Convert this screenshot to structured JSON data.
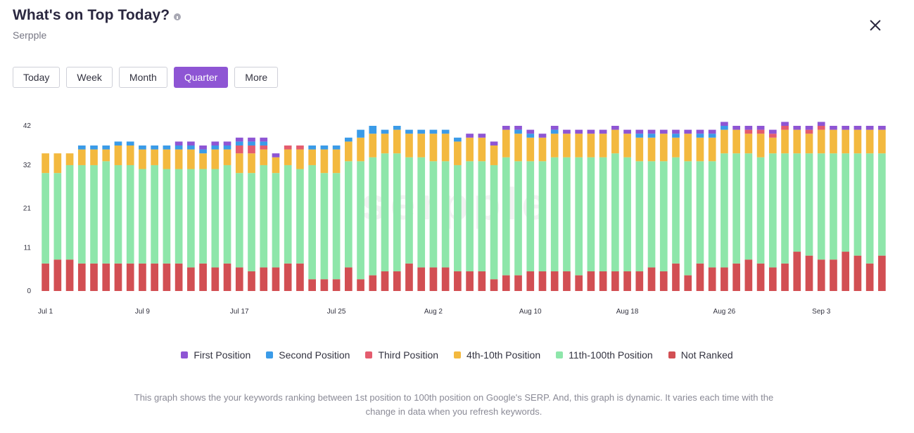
{
  "header": {
    "title": "What's on Top Today?",
    "subtitle": "Serpple"
  },
  "range_tabs": [
    "Today",
    "Week",
    "Month",
    "Quarter",
    "More"
  ],
  "active_tab": "Quarter",
  "watermark": "serpple",
  "colors": {
    "first": "#8e55d4",
    "second": "#3a9be8",
    "third": "#e45c6e",
    "top10": "#f3b93f",
    "top100": "#8ee6aa",
    "not_ranked": "#d24f53"
  },
  "chart_data": {
    "type": "bar",
    "stacked": true,
    "title": "",
    "xlabel": "",
    "ylabel": "",
    "ylim": [
      0,
      42
    ],
    "y_ticks": [
      0,
      11,
      21,
      32,
      42
    ],
    "x_tick_labels": [
      {
        "index": 0,
        "label": "Jul 1"
      },
      {
        "index": 8,
        "label": "Jul 9"
      },
      {
        "index": 16,
        "label": "Jul 17"
      },
      {
        "index": 24,
        "label": "Jul 25"
      },
      {
        "index": 32,
        "label": "Aug 2"
      },
      {
        "index": 40,
        "label": "Aug 10"
      },
      {
        "index": 48,
        "label": "Aug 18"
      },
      {
        "index": 56,
        "label": "Aug 26"
      },
      {
        "index": 64,
        "label": "Sep 3"
      }
    ],
    "categories_start": "Jul 1",
    "series": [
      {
        "name": "Not Ranked",
        "key": "not_ranked",
        "values": [
          7,
          8,
          8,
          7,
          7,
          7,
          7,
          7,
          7,
          7,
          7,
          7,
          6,
          7,
          6,
          7,
          6,
          5,
          6,
          6,
          7,
          7,
          3,
          3,
          3,
          6,
          3,
          4,
          5,
          5,
          7,
          6,
          6,
          6,
          5,
          5,
          5,
          3,
          4,
          4,
          5,
          5,
          5,
          5,
          4,
          5,
          5,
          5,
          5,
          5,
          6,
          5,
          7,
          4,
          7,
          6,
          6,
          7,
          8,
          7,
          6,
          7,
          10,
          9,
          8,
          8,
          10,
          9,
          7,
          9
        ]
      },
      {
        "name": "11th-100th Position",
        "key": "top100",
        "values": [
          23,
          22,
          24,
          25,
          25,
          26,
          25,
          25,
          24,
          25,
          24,
          24,
          25,
          24,
          25,
          25,
          24,
          25,
          26,
          24,
          25,
          24,
          29,
          27,
          27,
          27,
          30,
          30,
          30,
          30,
          27,
          28,
          27,
          27,
          27,
          28,
          28,
          29,
          30,
          29,
          28,
          28,
          29,
          29,
          30,
          29,
          29,
          30,
          29,
          28,
          27,
          28,
          27,
          29,
          26,
          27,
          29,
          28,
          27,
          27,
          29,
          28,
          25,
          26,
          27,
          27,
          25,
          26,
          28,
          26
        ]
      },
      {
        "name": "4th-10th Position",
        "key": "top10",
        "values": [
          5,
          5,
          3,
          4,
          4,
          3,
          5,
          5,
          5,
          4,
          5,
          5,
          5,
          4,
          5,
          4,
          5,
          5,
          4,
          4,
          4,
          5,
          4,
          6,
          6,
          5,
          6,
          6,
          5,
          6,
          6,
          6,
          7,
          7,
          6,
          6,
          6,
          5,
          7,
          7,
          6,
          6,
          6,
          6,
          6,
          6,
          6,
          6,
          6,
          6,
          6,
          7,
          5,
          7,
          6,
          6,
          6,
          6,
          5,
          6,
          4,
          6,
          6,
          5,
          6,
          6,
          6,
          6,
          6,
          6
        ]
      },
      {
        "name": "Third Position",
        "key": "third",
        "values": [
          0,
          0,
          0,
          0,
          0,
          0,
          0,
          0,
          0,
          0,
          0,
          0,
          0,
          0,
          0,
          0,
          2,
          2,
          1,
          0,
          1,
          1,
          0,
          0,
          0,
          0,
          0,
          0,
          0,
          0,
          0,
          0,
          0,
          0,
          0,
          0,
          0,
          0,
          0,
          0,
          0,
          0,
          0,
          0,
          0,
          0,
          0,
          0,
          0,
          0,
          0,
          0,
          0,
          0,
          0,
          0,
          0,
          0,
          1,
          1,
          1,
          1,
          0,
          1,
          1,
          0,
          0,
          0,
          0,
          0
        ]
      },
      {
        "name": "Second Position",
        "key": "second",
        "values": [
          0,
          0,
          0,
          1,
          1,
          1,
          1,
          1,
          1,
          1,
          1,
          1,
          1,
          1,
          1,
          1,
          1,
          1,
          1,
          0,
          0,
          0,
          1,
          1,
          1,
          1,
          2,
          2,
          1,
          1,
          1,
          1,
          1,
          1,
          1,
          0,
          0,
          0,
          0,
          1,
          1,
          0,
          1,
          0,
          0,
          0,
          0,
          0,
          0,
          1,
          1,
          0,
          1,
          0,
          1,
          1,
          1,
          0,
          0,
          0,
          0,
          0,
          0,
          0,
          0,
          0,
          0,
          0,
          0,
          0
        ]
      },
      {
        "name": "First Position",
        "key": "first",
        "values": [
          0,
          0,
          0,
          0,
          0,
          0,
          0,
          0,
          0,
          0,
          0,
          1,
          1,
          1,
          1,
          1,
          1,
          1,
          1,
          1,
          0,
          0,
          0,
          0,
          0,
          0,
          0,
          0,
          0,
          0,
          0,
          0,
          0,
          0,
          0,
          1,
          1,
          1,
          1,
          1,
          1,
          1,
          1,
          1,
          1,
          1,
          1,
          1,
          1,
          1,
          1,
          1,
          1,
          1,
          1,
          1,
          1,
          1,
          1,
          1,
          1,
          1,
          1,
          1,
          1,
          1,
          1,
          1,
          1,
          1
        ]
      }
    ],
    "legend_position": "bottom",
    "grid": false
  },
  "legend": [
    {
      "label": "First Position",
      "key": "first"
    },
    {
      "label": "Second Position",
      "key": "second"
    },
    {
      "label": "Third Position",
      "key": "third"
    },
    {
      "label": "4th-10th Position",
      "key": "top10"
    },
    {
      "label": "11th-100th Position",
      "key": "top100"
    },
    {
      "label": "Not Ranked",
      "key": "not_ranked"
    }
  ],
  "footnote": "This graph shows the your keywords ranking between 1st position to 100th position on Google's SERP. And, this graph is dynamic. It varies each time with the change in data when you refresh keywords."
}
